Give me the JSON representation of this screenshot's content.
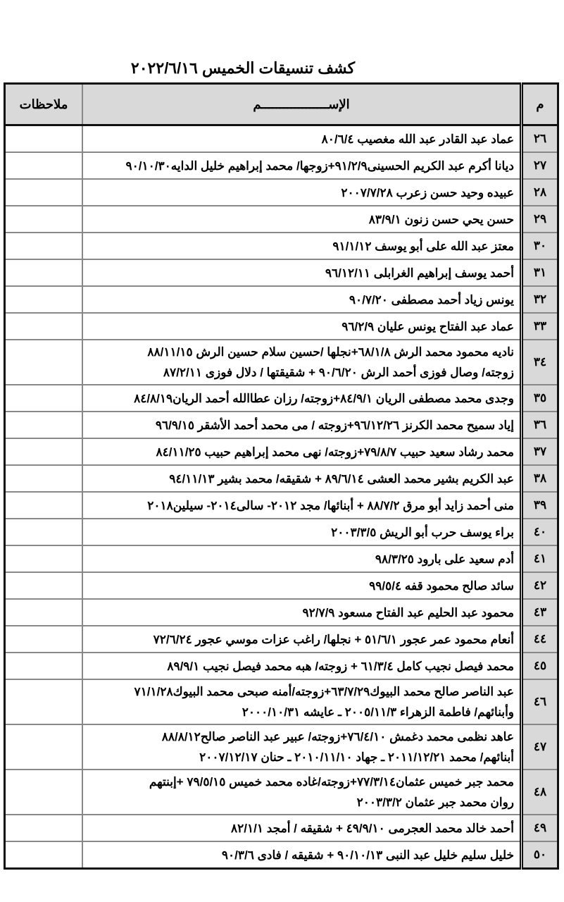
{
  "title": "كشف تنسيقات الخميس ٢٠٢٢/٦/١٦",
  "headers": {
    "num": "م",
    "name": "الإســــــــــــــــــم",
    "notes": "ملاحظات"
  },
  "rows": [
    {
      "num": "٢٦",
      "lines": [
        "عماد عبد القادر عبد الله مغصيب ٨٠/٦/٤"
      ]
    },
    {
      "num": "٢٧",
      "lines": [
        "ديانا أكرم عبد الكريم الحسينى٩١/٢/٩+زوجها/ محمد إبراهيم خليل الدايه٩٠/١٠/٣٠"
      ]
    },
    {
      "num": "٢٨",
      "lines": [
        "عبيده وحيد حسن زعرب ٢٠٠٧/٧/٢٨"
      ]
    },
    {
      "num": "٢٩",
      "lines": [
        "حسن يحي حسن زنون ٨٣/٩/١"
      ]
    },
    {
      "num": "٣٠",
      "lines": [
        "معتز عبد الله على أبو يوسف ٩١/١/١٢"
      ]
    },
    {
      "num": "٣١",
      "lines": [
        "أحمد يوسف إبراهيم الغرابلى ٩٦/١٢/١١"
      ]
    },
    {
      "num": "٣٢",
      "lines": [
        "يونس زياد أحمد مصطفى ٩٠/٧/٢٠"
      ]
    },
    {
      "num": "٣٣",
      "lines": [
        "عماد عبد الفتاح يونس عليان ٩٦/٢/٩"
      ]
    },
    {
      "num": "٣٤",
      "lines": [
        "ناديه محمود محمد الرش ٦٨/١/٨+نجلها /حسين سلام حسين الرش ٨٨/١١/١٥",
        "زوجته/ وصال فوزى أحمد الرش ٩٠/٦/٢٠ + شقيقتها / دلال فوزى ٨٧/٢/١١"
      ]
    },
    {
      "num": "٣٥",
      "lines": [
        "وجدى محمد مصطفى الريان ٨٤/٩/١+زوجته/ رزان عطاالله أحمد الريان٨٤/٨/١٩"
      ]
    },
    {
      "num": "٣٦",
      "lines": [
        "إياد سميح محمد الكرنز ٩٦/١٢/٢٦+زوجته / مى محمد أحمد الأشقر ٩٦/٩/١٥"
      ]
    },
    {
      "num": "٣٧",
      "lines": [
        "محمد رشاد سعيد حبيب ٧٩/٨/٧+زوجته/ نهى محمد إبراهيم حبيب ٨٤/١١/٢٥"
      ]
    },
    {
      "num": "٣٨",
      "lines": [
        "عبد الكريم بشير محمد العشى ٨٩/٦/١٤ + شقيقه/ محمد بشير ٩٤/١١/١٣"
      ]
    },
    {
      "num": "٣٩",
      "lines": [
        "منى أحمد زايد أبو مرق ٨٨/٧/٢ + أبنائها/ مجد ٢٠١٢- سالى٢٠١٤- سيلين٢٠١٨"
      ]
    },
    {
      "num": "٤٠",
      "lines": [
        "براء يوسف حرب أبو الريش ٢٠٠٣/٣/٥"
      ]
    },
    {
      "num": "٤١",
      "lines": [
        "أدم سعيد على بارود ٩٨/٣/٢٥"
      ]
    },
    {
      "num": "٤٢",
      "lines": [
        "سائد صالح محمود قفه ٩٩/٥/٤"
      ]
    },
    {
      "num": "٤٣",
      "lines": [
        "محمود عبد الحليم عبد الفتاح مسعود ٩٢/٧/٩"
      ]
    },
    {
      "num": "٤٤",
      "lines": [
        "أنعام محمود عمر عجور ٥١/٦/١ + نجلها/ راغب عزات موسي عجور ٧٢/٦/٢٤"
      ]
    },
    {
      "num": "٤٥",
      "lines": [
        "محمد فيصل نجيب كامل ٦١/٣/٤ + زوجته/ هبه محمد فيصل نجيب ٨٩/٩/١"
      ]
    },
    {
      "num": "٤٦",
      "lines": [
        "عبد الناصر صالح محمد البيوك٦٣/٧/٢٩+زوجته/أمنه صبحى محمد البيوك٧١/١/٢٨",
        "وأبنائهم/ فاطمة الزهراء ٢٠٠٥/١١/٣ ـ عايشه ٢٠٠٠/١٠/٣١"
      ]
    },
    {
      "num": "٤٧",
      "lines": [
        "عاهد نظمى محمد دغمش ٧٦/٤/١٠+زوجته/ عبير عبد الناصر صالح٨٨/٨/١٢",
        "أبنائهم/ محمد ٢٠١١/١٢/٢١ ـ جهاد ٢٠١٠/١١/١٠ ـ حنان ٢٠٠٧/١٢/١٧"
      ]
    },
    {
      "num": "٤٨",
      "lines": [
        "محمد جبر خميس عثمان٧٧/٣/١٤+زوجته/غاده محمد خميس ٧٩/٥/١٥ +إبنتهم",
        "روان محمد جبر عثمان ٢٠٠٣/٣/٢"
      ]
    },
    {
      "num": "٤٩",
      "lines": [
        "أحمد خالد محمد العجرمى ٤٩/٩/١٠ + شقيقه / أمجد ٨٢/١/١"
      ]
    },
    {
      "num": "٥٠",
      "lines": [
        "خليل سليم خليل عبد النبى ٩٠/١٠/١٣ + شقيقه / فادى ٩٠/٣/٦"
      ]
    }
  ]
}
